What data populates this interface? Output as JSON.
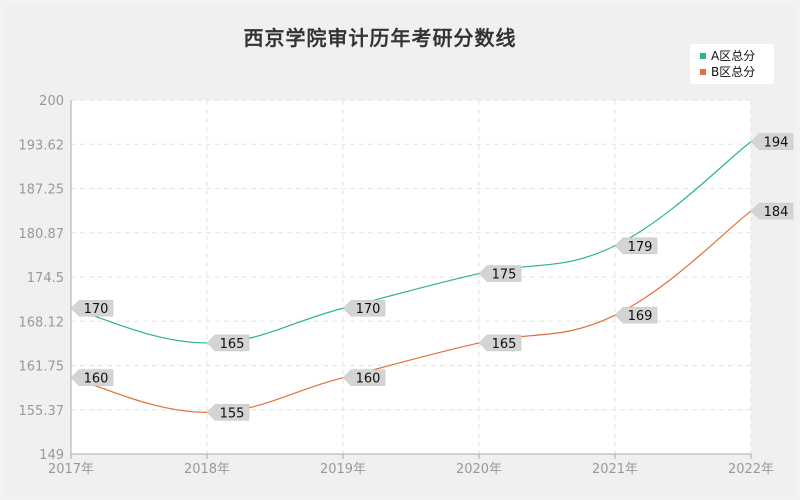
{
  "chart_data": {
    "type": "line",
    "title": "西京学院审计历年考研分数线",
    "categories": [
      "2017年",
      "2018年",
      "2019年",
      "2020年",
      "2021年",
      "2022年"
    ],
    "series": [
      {
        "name": "A区总分",
        "color": "#2bb58c",
        "values": [
          170,
          165,
          170,
          175,
          179,
          194
        ]
      },
      {
        "name": "B区总分",
        "color": "#e0703f",
        "values": [
          160,
          155,
          160,
          165,
          169,
          184
        ]
      }
    ],
    "y_ticks": [
      "149",
      "155.37",
      "161.75",
      "168.12",
      "174.5",
      "180.87",
      "187.25",
      "193.62",
      "200"
    ],
    "ylim": [
      149,
      200
    ],
    "grid": true,
    "legend_position": "top-right",
    "data_labels": true
  }
}
